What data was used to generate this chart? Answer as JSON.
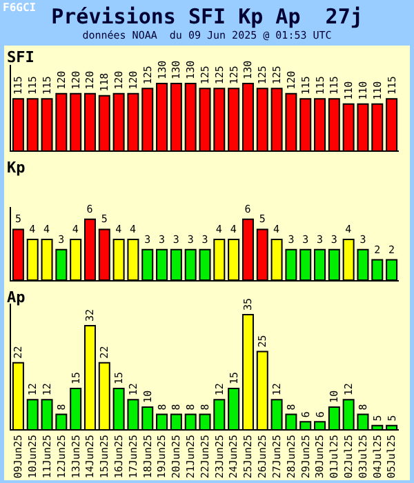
{
  "chart_data": [
    {
      "type": "bar",
      "title": "Prévisions SFI Kp Ap  27j",
      "subtitle": "données NOAA  du 09 Jun 2025 @ 01:53 UTC",
      "annotations": [
        "F6GCI"
      ],
      "ylabel": "SFI",
      "values": [
        115,
        115,
        115,
        120,
        120,
        120,
        118,
        120,
        120,
        125,
        130,
        130,
        130,
        125,
        125,
        125,
        130,
        125,
        125,
        120,
        115,
        115,
        115,
        110,
        110,
        110,
        115
      ],
      "color": "#ff0000",
      "ylim": [
        65,
        148
      ],
      "data_labels": true,
      "tick_labels": false
    },
    {
      "type": "bar",
      "ylabel": "Kp",
      "values": [
        5,
        4,
        4,
        3,
        4,
        6,
        5,
        4,
        4,
        3,
        3,
        3,
        3,
        3,
        4,
        4,
        6,
        5,
        4,
        3,
        3,
        3,
        3,
        4,
        3,
        2,
        2
      ],
      "colors": [
        "#ff0000",
        "#ffff00",
        "#ffff00",
        "#00ee00",
        "#ffff00",
        "#ff0000",
        "#ff0000",
        "#ffff00",
        "#ffff00",
        "#00ee00",
        "#00ee00",
        "#00ee00",
        "#00ee00",
        "#00ee00",
        "#ffff00",
        "#ffff00",
        "#ff0000",
        "#ff0000",
        "#ffff00",
        "#00ee00",
        "#00ee00",
        "#00ee00",
        "#00ee00",
        "#ffff00",
        "#00ee00",
        "#00ee00",
        "#00ee00"
      ],
      "ylim": [
        0,
        7.2
      ],
      "data_labels": true,
      "tick_labels": false
    },
    {
      "type": "bar",
      "ylabel": "Ap",
      "categories": [
        "09Jun25",
        "10Jun25",
        "11Jun25",
        "12Jun25",
        "13Jun25",
        "14Jun25",
        "15Jun25",
        "16Jun25",
        "17Jun25",
        "18Jun25",
        "19Jun25",
        "20Jun25",
        "21Jun25",
        "22Jun25",
        "23Jun25",
        "24Jun25",
        "25Jun25",
        "26Jun25",
        "27Jun25",
        "28Jun25",
        "29Jun25",
        "30Jun25",
        "01Jul25",
        "02Jul25",
        "03Jul25",
        "04Jul25",
        "05Jul25"
      ],
      "values": [
        22,
        12,
        12,
        8,
        15,
        32,
        22,
        15,
        12,
        10,
        8,
        8,
        8,
        8,
        12,
        15,
        35,
        25,
        12,
        8,
        6,
        6,
        10,
        12,
        8,
        5,
        5
      ],
      "colors": [
        "#ffff00",
        "#00ee00",
        "#00ee00",
        "#00ee00",
        "#00ee00",
        "#ffff00",
        "#ffff00",
        "#00ee00",
        "#00ee00",
        "#00ee00",
        "#00ee00",
        "#00ee00",
        "#00ee00",
        "#00ee00",
        "#00ee00",
        "#00ee00",
        "#ffff00",
        "#ffff00",
        "#00ee00",
        "#00ee00",
        "#00ee00",
        "#00ee00",
        "#00ee00",
        "#00ee00",
        "#00ee00",
        "#00ee00",
        "#00ee00"
      ],
      "ylim": [
        4,
        38
      ],
      "data_labels": true,
      "tick_labels": "x"
    }
  ]
}
